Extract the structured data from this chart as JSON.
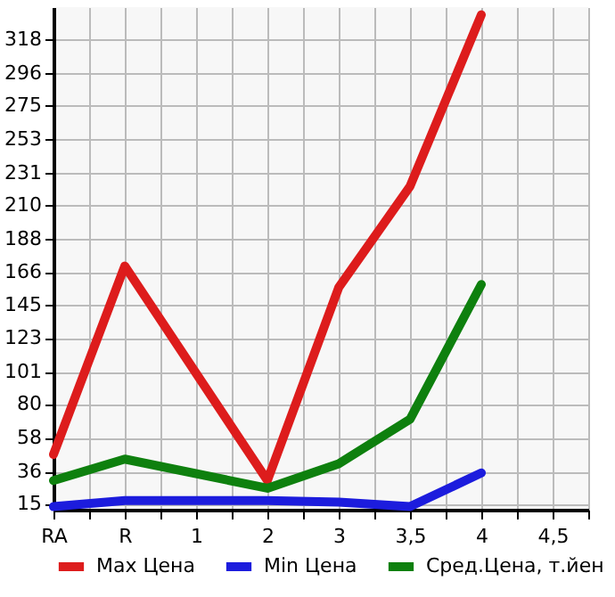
{
  "chart_data": {
    "type": "line",
    "categories": [
      "RA",
      "R",
      "1",
      "2",
      "3",
      "3,5",
      "4",
      "4,5"
    ],
    "series": [
      {
        "name": "Max Цена",
        "color": "#dd1c1c",
        "values": [
          47,
          170,
          null,
          30,
          156,
          222,
          334,
          null
        ]
      },
      {
        "name": "Min Цена",
        "color": "#1c1cdd",
        "values": [
          13,
          17,
          null,
          17,
          16,
          13,
          35,
          null
        ]
      },
      {
        "name": "Сред.Цена, т.йен",
        "color": "#0e800e",
        "values": [
          30,
          44,
          null,
          25,
          41,
          70,
          158,
          null
        ]
      }
    ],
    "ylim": [
      11,
      339
    ],
    "yticks": [
      15,
      36,
      58,
      80,
      101,
      123,
      145,
      166,
      188,
      210,
      231,
      253,
      275,
      296,
      318
    ],
    "grid": true,
    "legend": "bottom",
    "marker": "none",
    "line_style": "solid"
  }
}
